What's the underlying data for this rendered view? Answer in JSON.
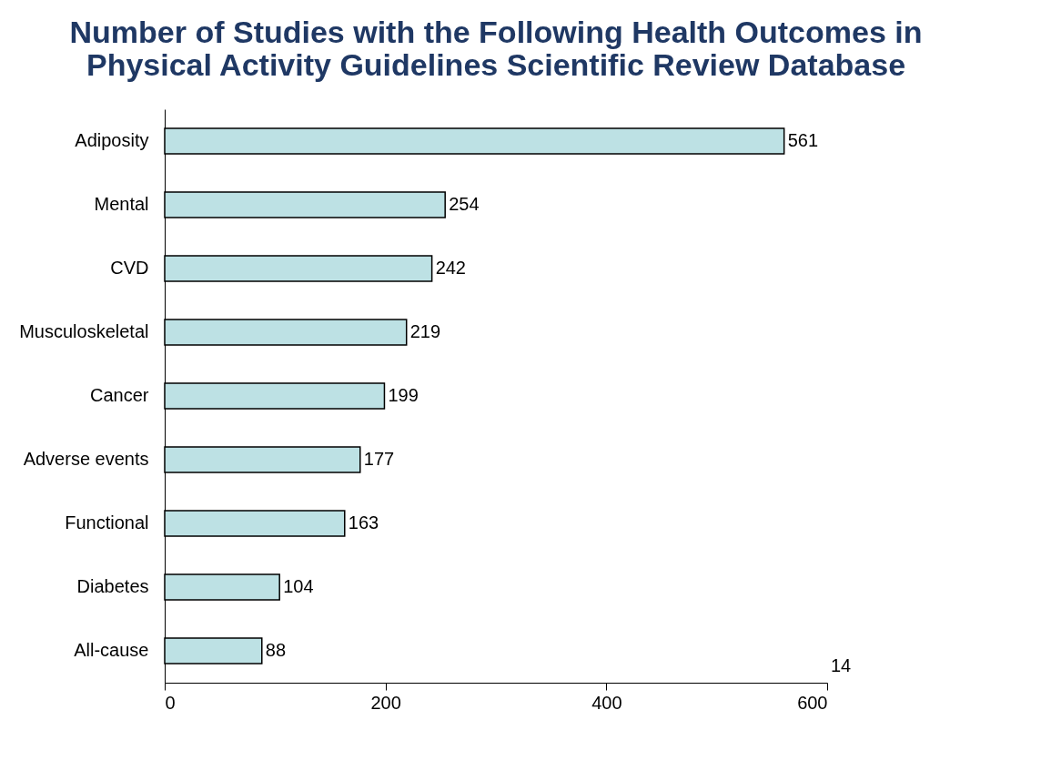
{
  "chart_data": {
    "type": "bar",
    "orientation": "horizontal",
    "title": "Number of Studies with the Following Health Outcomes in Physical Activity Guidelines Scientific Review Database",
    "categories": [
      "Adiposity",
      "Mental",
      "CVD",
      "Musculoskeletal",
      "Cancer",
      "Adverse events",
      "Functional",
      "Diabetes",
      "All-cause"
    ],
    "values": [
      561,
      254,
      242,
      219,
      199,
      177,
      163,
      104,
      88
    ],
    "color": "#bde1e4",
    "xlim": [
      0,
      600
    ],
    "xticks": [
      0,
      200,
      400,
      600
    ],
    "data_labels": true,
    "grid": false,
    "annotations": [
      "14"
    ]
  }
}
